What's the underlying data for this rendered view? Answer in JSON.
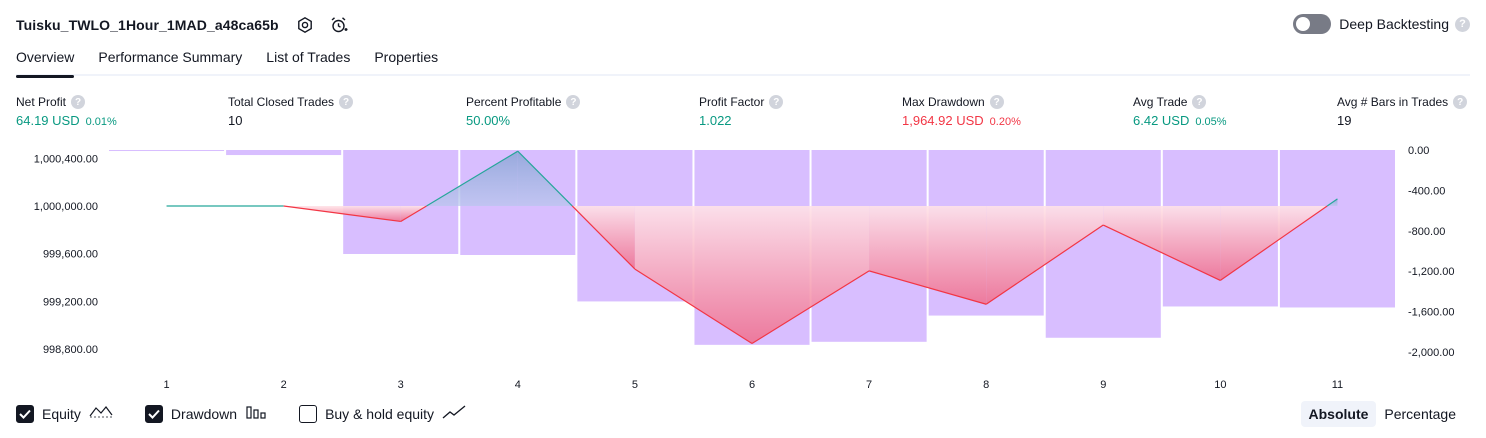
{
  "header": {
    "strategy_name": "Tuisku_TWLO_1Hour_1MAD_a48ca65b",
    "settings_icon": "gear-icon",
    "alert_icon": "alarm-clock-plus-icon"
  },
  "deep_backtesting": {
    "label": "Deep Backtesting",
    "enabled": false,
    "help_icon": "question-icon"
  },
  "tabs": [
    {
      "label": "Overview",
      "active": true
    },
    {
      "label": "Performance Summary",
      "active": false
    },
    {
      "label": "List of Trades",
      "active": false
    },
    {
      "label": "Properties",
      "active": false
    }
  ],
  "metrics": [
    {
      "label": "Net Profit",
      "value": "64.19 USD",
      "sub": "0.01%",
      "tone": "positive"
    },
    {
      "label": "Total Closed Trades",
      "value": "10",
      "sub": "",
      "tone": "neutral"
    },
    {
      "label": "Percent Profitable",
      "value": "50.00%",
      "sub": "",
      "tone": "positive"
    },
    {
      "label": "Profit Factor",
      "value": "1.022",
      "sub": "",
      "tone": "positive"
    },
    {
      "label": "Max Drawdown",
      "value": "1,964.92 USD",
      "sub": "0.20%",
      "tone": "negative"
    },
    {
      "label": "Avg Trade",
      "value": "6.42 USD",
      "sub": "0.05%",
      "tone": "positive"
    },
    {
      "label": "Avg # Bars in Trades",
      "value": "19",
      "sub": "",
      "tone": "neutral"
    }
  ],
  "chart_data": {
    "type": "line",
    "x": [
      1,
      2,
      3,
      4,
      5,
      6,
      7,
      8,
      9,
      10,
      11
    ],
    "series": [
      {
        "name": "Equity",
        "axis": "left",
        "values": [
          1000000,
          1000000,
          999870,
          1000460,
          999470,
          998845,
          999455,
          999175,
          999840,
          999375,
          1000060
        ]
      },
      {
        "name": "Drawdown",
        "axis": "right",
        "style": "bars",
        "values": [
          -10,
          -50,
          -1030,
          -1040,
          -1500,
          -1930,
          -1900,
          -1640,
          -1860,
          -1550,
          -1560
        ]
      }
    ],
    "left_axis": {
      "ticks": [
        "1,000,400.00",
        "1,000,000.00",
        "999,600.00",
        "999,200.00",
        "998,800.00"
      ],
      "ylim": [
        998690,
        1000470
      ]
    },
    "right_axis": {
      "ticks": [
        "0.00",
        "-400.00",
        "-800.00",
        "-1,200.00",
        "-1,600.00",
        "-2,000.00"
      ],
      "ylim": [
        -2100,
        0
      ]
    },
    "x_ticks": [
      "1",
      "2",
      "3",
      "4",
      "5",
      "6",
      "7",
      "8",
      "9",
      "10",
      "11"
    ],
    "baseline": 1000000,
    "colors": {
      "equity_up": "#26a69a",
      "equity_down": "#f23645",
      "drawdown": "#d1b3ff",
      "loss_fill": "#f7a8b8"
    }
  },
  "legend": [
    {
      "label": "Equity",
      "checked": true,
      "icon": "equity-line-icon"
    },
    {
      "label": "Drawdown",
      "checked": true,
      "icon": "drawdown-bars-icon"
    },
    {
      "label": "Buy & hold equity",
      "checked": false,
      "icon": "buy-hold-line-icon"
    }
  ],
  "view_modes": [
    {
      "label": "Absolute",
      "active": true
    },
    {
      "label": "Percentage",
      "active": false
    }
  ]
}
